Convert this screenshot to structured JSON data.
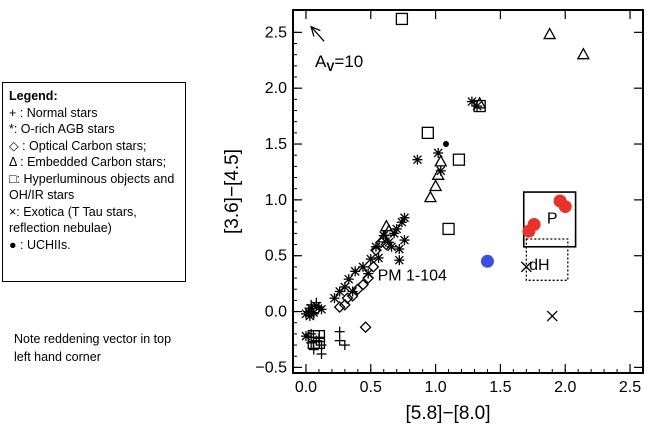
{
  "legend": {
    "title": "Legend:",
    "items": [
      "+ : Normal stars",
      "*:  O-rich AGB stars",
      "◇ : Optical Carbon stars;",
      "Δ : Embedded Carbon stars;",
      "□: Hyperluminous objects and OH/IR stars",
      "×: Exotica (T Tau stars, reflection nebulae)",
      "● : UCHIIs."
    ]
  },
  "note": "Note reddening vector in top left hand corner",
  "chart_data": {
    "type": "scatter",
    "xlabel": "[5.8]−[8.0]",
    "ylabel": "[3.6]−[4.5]",
    "xlim": [
      -0.1,
      2.6
    ],
    "ylim": [
      -0.55,
      2.7
    ],
    "xticks": [
      0.0,
      0.5,
      1.0,
      1.5,
      2.0,
      2.5
    ],
    "xtick_labels": [
      "0.0",
      "0.5",
      "1.0",
      "1.5",
      "2.0",
      "2.5"
    ],
    "yticks": [
      -0.5,
      0.0,
      0.5,
      1.0,
      1.5,
      2.0,
      2.5
    ],
    "ytick_labels": [
      "−0.5",
      "0.0",
      "0.5",
      "1.0",
      "1.5",
      "2.0",
      "2.5"
    ],
    "reddening": {
      "label_main": "A",
      "label_sub": "V",
      "label_value": "=10",
      "x0": 0.14,
      "y0": 2.42,
      "x1": 0.04,
      "y1": 2.55,
      "label_x": 0.07,
      "label_y": 2.19
    },
    "series": [
      {
        "name": "Normal stars",
        "marker": "plus",
        "points": [
          [
            0.04,
            -0.28
          ],
          [
            0.08,
            -0.26
          ],
          [
            0.12,
            -0.3
          ],
          [
            0.04,
            -0.2
          ],
          [
            0.1,
            -0.24
          ],
          [
            0.26,
            -0.18
          ],
          [
            0.06,
            -0.34
          ],
          [
            0.12,
            -0.38
          ],
          [
            0.3,
            -0.3
          ],
          [
            0.04,
            0.06
          ],
          [
            0.08,
            0.08
          ],
          [
            0.1,
            0.04
          ],
          [
            0.06,
            -0.02
          ],
          [
            0.26,
            -0.26
          ]
        ]
      },
      {
        "name": "O-rich AGB stars",
        "marker": "star",
        "points": [
          [
            0.0,
            -0.02
          ],
          [
            0.02,
            0.0
          ],
          [
            0.04,
            0.03
          ],
          [
            0.06,
            -0.01
          ],
          [
            0.08,
            0.05
          ],
          [
            0.03,
            -0.04
          ],
          [
            0.12,
            0.02
          ],
          [
            0.22,
            0.12
          ],
          [
            0.26,
            0.18
          ],
          [
            0.3,
            0.22
          ],
          [
            0.33,
            0.29
          ],
          [
            0.38,
            0.36
          ],
          [
            0.44,
            0.4
          ],
          [
            0.5,
            0.47
          ],
          [
            0.54,
            0.58
          ],
          [
            0.6,
            0.68
          ],
          [
            0.64,
            0.62
          ],
          [
            0.68,
            0.7
          ],
          [
            0.7,
            0.74
          ],
          [
            0.74,
            0.8
          ],
          [
            0.76,
            0.84
          ],
          [
            0.72,
            0.56
          ],
          [
            0.76,
            0.64
          ],
          [
            0.72,
            0.46
          ],
          [
            0.86,
            1.36
          ],
          [
            1.02,
            1.42
          ],
          [
            1.04,
            1.26
          ],
          [
            1.28,
            1.88
          ],
          [
            1.32,
            1.84
          ],
          [
            0.36,
            0.18
          ],
          [
            0.48,
            0.34
          ],
          [
            0.66,
            0.58
          ],
          [
            0.56,
            0.48
          ],
          [
            0.0,
            -0.22
          ]
        ]
      },
      {
        "name": "Optical Carbon stars",
        "marker": "diamond",
        "points": [
          [
            0.26,
            0.04
          ],
          [
            0.32,
            0.12
          ],
          [
            0.36,
            0.14
          ],
          [
            0.4,
            0.2
          ],
          [
            0.44,
            0.24
          ],
          [
            0.48,
            0.3
          ],
          [
            0.52,
            0.4
          ],
          [
            0.54,
            0.55
          ],
          [
            0.58,
            0.62
          ],
          [
            0.62,
            0.6
          ],
          [
            0.3,
            0.06
          ],
          [
            0.46,
            -0.14
          ]
        ]
      },
      {
        "name": "Embedded Carbon stars",
        "marker": "triangle",
        "points": [
          [
            0.62,
            0.76
          ],
          [
            0.64,
            0.72
          ],
          [
            0.6,
            0.66
          ],
          [
            0.96,
            1.02
          ],
          [
            1.0,
            1.12
          ],
          [
            1.02,
            1.22
          ],
          [
            1.04,
            1.34
          ],
          [
            1.34,
            1.86
          ],
          [
            1.88,
            2.48
          ],
          [
            2.14,
            2.3
          ]
        ]
      },
      {
        "name": "Hyperluminous objects and OH/IR stars",
        "marker": "square",
        "points": [
          [
            0.74,
            2.62
          ],
          [
            0.94,
            1.6
          ],
          [
            1.18,
            1.36
          ],
          [
            1.1,
            0.74
          ],
          [
            1.34,
            1.84
          ],
          [
            0.06,
            -0.22
          ],
          [
            0.1,
            -0.28
          ],
          [
            0.1,
            -0.22
          ],
          [
            0.06,
            -0.28
          ]
        ]
      },
      {
        "name": "Exotica",
        "marker": "cross",
        "points": [
          [
            1.7,
            0.4
          ],
          [
            1.9,
            -0.04
          ]
        ]
      },
      {
        "name": "UCHIIs",
        "marker": "dot",
        "points": [
          [
            1.08,
            1.5
          ]
        ]
      },
      {
        "name": "Red sources",
        "marker": "red-circle",
        "color": "#e8322c",
        "points": [
          [
            1.72,
            0.72
          ],
          [
            1.76,
            0.78
          ],
          [
            1.96,
            0.99
          ],
          [
            2.0,
            0.94
          ]
        ]
      },
      {
        "name": "PM 1-104",
        "marker": "blue-circle",
        "color": "#3b50e0",
        "points": [
          [
            1.4,
            0.45
          ]
        ]
      }
    ],
    "annotations": [
      {
        "text": "PM 1-104",
        "x": 0.82,
        "y": 0.28
      },
      {
        "text": "P",
        "x": 1.9,
        "y": 0.79
      },
      {
        "text": "dH",
        "x": 1.8,
        "y": 0.37
      }
    ],
    "boxes": [
      {
        "name": "P",
        "style": "solid",
        "x0": 1.68,
        "x1": 2.08,
        "y0": 0.58,
        "y1": 1.07
      },
      {
        "name": "dH",
        "style": "dotted",
        "x0": 1.7,
        "x1": 2.02,
        "y0": 0.28,
        "y1": 0.65
      }
    ]
  }
}
